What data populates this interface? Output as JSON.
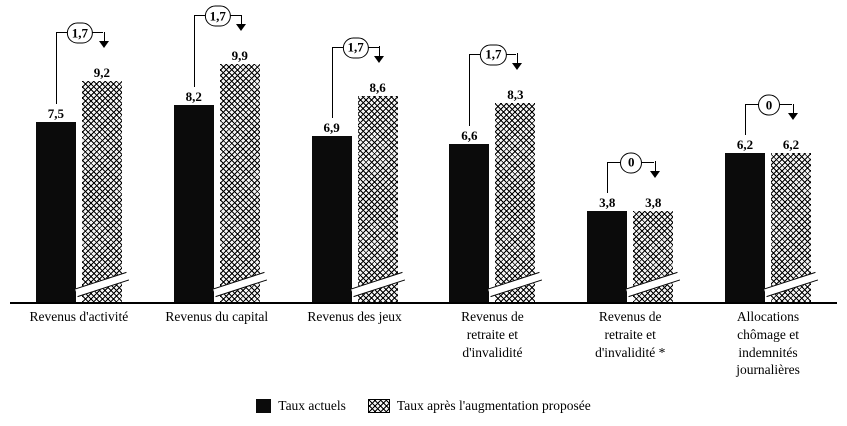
{
  "chart_data": {
    "type": "bar",
    "categories": [
      "Revenus d'activité",
      "Revenus du capital",
      "Revenus des jeux",
      "Revenus de\nretraite et\nd'invalidité",
      "Revenus de\nretraite et\nd'invalidité *",
      "Allocations\nchômage et\nindemnités\njournalières"
    ],
    "series": [
      {
        "name": "Taux actuels",
        "values": [
          7.5,
          8.2,
          6.9,
          6.6,
          3.8,
          6.2
        ]
      },
      {
        "name": "Taux après l'augmentation proposée",
        "values": [
          9.2,
          9.9,
          8.6,
          8.3,
          3.8,
          6.2
        ]
      }
    ],
    "value_labels": [
      [
        "7,5",
        "9,2"
      ],
      [
        "8,2",
        "9,9"
      ],
      [
        "6,9",
        "8,6"
      ],
      [
        "6,6",
        "8,3"
      ],
      [
        "3,8",
        "3,8"
      ],
      [
        "6,2",
        "6,2"
      ]
    ],
    "deltas": [
      "1,7",
      "1,7",
      "1,7",
      "1,7",
      "0",
      "0"
    ],
    "ylim": [
      0,
      10
    ],
    "grid": false,
    "legend_position": "bottom",
    "colors": {
      "current_bar": "#0b0b0b",
      "proposed_bar_pattern": "black-crosshatch-on-white"
    }
  },
  "legend": {
    "current": "Taux actuels",
    "proposed": "Taux après l'augmentation proposée"
  }
}
